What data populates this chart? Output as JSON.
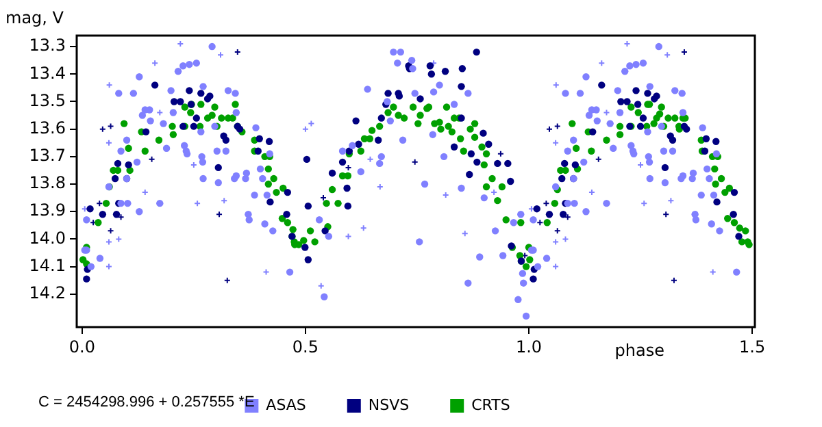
{
  "chart_data": {
    "type": "scatter",
    "xlabel": "phase",
    "ylabel": "mag, V",
    "annotations": [
      "C = 2454298.996 + 0.257555 *E"
    ],
    "xlim": [
      -0.012,
      1.506
    ],
    "ylim": [
      14.32,
      13.26
    ],
    "xticks": [
      {
        "value": 0,
        "label": "0.0"
      },
      0.5,
      {
        "value": 1,
        "label": "1.0"
      },
      1.5
    ],
    "yticks": [
      13.3,
      13.4,
      13.5,
      13.6,
      13.7,
      13.8,
      13.9,
      {
        "value": 14,
        "label": "14.0"
      },
      14.1,
      14.2
    ],
    "grid": false,
    "legend": "bottom",
    "series": [
      {
        "name": "ASAS",
        "color": "#8080ff",
        "marker": "circle",
        "x": [
          0.006,
          0.01,
          0.02,
          0.01,
          0.04,
          0.06,
          0.087,
          0.082,
          0.1,
          0.1,
          0.102,
          0.087,
          0.115,
          0.123,
          0.128,
          0.128,
          0.135,
          0.141,
          0.151,
          0.153,
          0.174,
          0.182,
          0.189,
          0.199,
          0.204,
          0.215,
          0.226,
          0.24,
          0.256,
          0.229,
          0.235,
          0.233,
          0.271,
          0.266,
          0.268,
          0.27,
          0.271,
          0.291,
          0.297,
          0.302,
          0.305,
          0.322,
          0.327,
          0.343,
          0.345,
          0.341,
          0.345,
          0.368,
          0.366,
          0.372,
          0.374,
          0.389,
          0.386,
          0.399,
          0.404,
          0.409,
          0.414,
          0.427,
          0.42,
          0.465,
          0.542,
          0.531,
          0.552,
          0.583,
          0.605,
          0.624,
          0.639,
          0.666,
          0.67,
          0.683,
          0.69,
          0.697,
          0.713,
          0.706,
          0.718,
          0.738,
          0.74,
          0.745,
          0.755,
          0.767,
          0.785,
          0.787,
          0.8,
          0.81,
          0.833,
          0.849,
          0.864,
          0.864,
          0.89,
          0.9,
          0.925,
          0.942,
          0.966,
          0.982,
          0.986,
          0.988,
          0.976,
          0.994,
          1.006,
          1.01,
          1.02,
          1.01,
          1.04,
          1.06,
          1.087,
          1.082,
          1.1,
          1.1,
          1.102,
          1.087,
          1.115,
          1.123,
          1.128,
          1.128,
          1.135,
          1.141,
          1.151,
          1.153,
          1.174,
          1.182,
          1.189,
          1.199,
          1.204,
          1.215,
          1.226,
          1.24,
          1.256,
          1.229,
          1.235,
          1.233,
          1.271,
          1.266,
          1.268,
          1.27,
          1.271,
          1.291,
          1.297,
          1.302,
          1.305,
          1.322,
          1.327,
          1.343,
          1.345,
          1.341,
          1.345,
          1.368,
          1.366,
          1.372,
          1.374,
          1.389,
          1.386,
          1.399,
          1.404,
          1.409,
          1.414,
          1.427,
          1.42,
          1.465
        ],
        "values": [
          14.04,
          14.04,
          14.1,
          13.93,
          14.07,
          13.81,
          13.87,
          13.47,
          13.78,
          13.64,
          13.87,
          13.68,
          13.47,
          13.72,
          13.41,
          13.9,
          13.55,
          13.53,
          13.53,
          13.57,
          13.87,
          13.58,
          13.67,
          13.46,
          13.54,
          13.39,
          13.37,
          13.365,
          13.36,
          13.66,
          13.69,
          13.68,
          13.445,
          13.61,
          13.7,
          13.72,
          13.78,
          13.3,
          13.59,
          13.68,
          13.795,
          13.68,
          13.46,
          13.47,
          13.54,
          13.78,
          13.77,
          13.76,
          13.78,
          13.91,
          13.93,
          13.595,
          13.84,
          13.745,
          13.78,
          13.945,
          13.84,
          13.97,
          13.69,
          14.12,
          14.21,
          13.93,
          13.99,
          13.68,
          13.66,
          13.755,
          13.455,
          13.725,
          13.7,
          13.5,
          13.57,
          13.32,
          13.32,
          13.36,
          13.64,
          13.35,
          13.38,
          13.47,
          14.01,
          13.8,
          13.62,
          13.465,
          13.44,
          13.7,
          13.51,
          13.815,
          13.47,
          14.16,
          14.065,
          13.85,
          13.97,
          14.06,
          13.94,
          13.91,
          14.125,
          14.16,
          14.22,
          14.28,
          14.04,
          14.04,
          14.1,
          13.93,
          14.07,
          13.81,
          13.87,
          13.47,
          13.78,
          13.64,
          13.87,
          13.68,
          13.47,
          13.72,
          13.41,
          13.9,
          13.55,
          13.53,
          13.53,
          13.57,
          13.87,
          13.58,
          13.67,
          13.46,
          13.54,
          13.39,
          13.37,
          13.365,
          13.36,
          13.66,
          13.69,
          13.68,
          13.445,
          13.61,
          13.7,
          13.72,
          13.78,
          13.3,
          13.59,
          13.68,
          13.795,
          13.68,
          13.46,
          13.47,
          13.54,
          13.78,
          13.77,
          13.76,
          13.78,
          13.91,
          13.93,
          13.595,
          13.84,
          13.745,
          13.78,
          13.945,
          13.84,
          13.97,
          13.69,
          14.12
        ]
      },
      {
        "name": "NSVS",
        "color": "#000080",
        "marker": "circle",
        "x": [
          0.01,
          0.012,
          0.018,
          0.046,
          0.077,
          0.082,
          0.08,
          0.074,
          0.1,
          0.104,
          0.143,
          0.163,
          0.206,
          0.22,
          0.24,
          0.244,
          0.256,
          0.25,
          0.226,
          0.266,
          0.281,
          0.286,
          0.317,
          0.322,
          0.305,
          0.348,
          0.353,
          0.397,
          0.419,
          0.394,
          0.421,
          0.46,
          0.458,
          0.47,
          0.503,
          0.506,
          0.499,
          0.506,
          0.544,
          0.56,
          0.583,
          0.593,
          0.595,
          0.598,
          0.619,
          0.613,
          0.663,
          0.67,
          0.68,
          0.685,
          0.708,
          0.71,
          0.731,
          0.733,
          0.757,
          0.779,
          0.782,
          0.813,
          0.851,
          0.849,
          0.883,
          0.833,
          0.849,
          0.871,
          0.884,
          0.867,
          0.898,
          0.91,
          0.93,
          0.953,
          0.959,
          0.961,
          0.983,
          1.01,
          1.012,
          1.018,
          1.046,
          1.077,
          1.082,
          1.08,
          1.074,
          1.1,
          1.104,
          1.143,
          1.163,
          1.206,
          1.22,
          1.24,
          1.244,
          1.256,
          1.25,
          1.226,
          1.266,
          1.281,
          1.286,
          1.317,
          1.322,
          1.305,
          1.348,
          1.353,
          1.397,
          1.419,
          1.394,
          1.421,
          1.46,
          1.458,
          1.47
        ],
        "values": [
          14.145,
          14.11,
          13.89,
          13.91,
          13.91,
          13.87,
          13.725,
          13.78,
          13.78,
          13.73,
          13.61,
          13.44,
          13.5,
          13.5,
          13.46,
          13.51,
          13.56,
          13.59,
          13.59,
          13.47,
          13.49,
          13.48,
          13.625,
          13.64,
          13.74,
          13.59,
          13.6,
          13.635,
          13.645,
          13.68,
          13.865,
          13.83,
          13.91,
          13.99,
          13.71,
          13.88,
          14.03,
          14.075,
          13.97,
          13.76,
          13.72,
          13.815,
          13.88,
          13.68,
          13.655,
          13.57,
          13.64,
          13.56,
          13.51,
          13.47,
          13.47,
          13.48,
          13.37,
          13.38,
          13.49,
          13.37,
          13.4,
          13.39,
          13.38,
          13.445,
          13.32,
          13.665,
          13.56,
          13.69,
          13.72,
          13.765,
          13.615,
          13.655,
          13.725,
          13.725,
          13.79,
          14.025,
          14.08,
          14.145,
          14.11,
          13.89,
          13.91,
          13.91,
          13.87,
          13.725,
          13.78,
          13.78,
          13.73,
          13.61,
          13.44,
          13.5,
          13.5,
          13.46,
          13.51,
          13.56,
          13.59,
          13.59,
          13.47,
          13.49,
          13.48,
          13.625,
          13.64,
          13.74,
          13.59,
          13.6,
          13.635,
          13.645,
          13.68,
          13.865,
          13.83,
          13.91,
          13.99
        ]
      },
      {
        "name": "CRTS",
        "color": "#00a000",
        "marker": "circle",
        "x": [
          0.002,
          0.01,
          0.01,
          0.036,
          0.054,
          0.061,
          0.07,
          0.08,
          0.107,
          0.104,
          0.094,
          0.133,
          0.141,
          0.172,
          0.202,
          0.204,
          0.23,
          0.23,
          0.243,
          0.245,
          0.266,
          0.264,
          0.281,
          0.291,
          0.297,
          0.302,
          0.312,
          0.327,
          0.337,
          0.343,
          0.348,
          0.358,
          0.386,
          0.386,
          0.409,
          0.42,
          0.417,
          0.417,
          0.429,
          0.435,
          0.45,
          0.448,
          0.46,
          0.472,
          0.475,
          0.485,
          0.47,
          0.476,
          0.496,
          0.511,
          0.521,
          0.547,
          0.55,
          0.56,
          0.573,
          0.583,
          0.595,
          0.598,
          0.624,
          0.632,
          0.644,
          0.649,
          0.666,
          0.685,
          0.697,
          0.708,
          0.721,
          0.741,
          0.752,
          0.757,
          0.772,
          0.776,
          0.789,
          0.8,
          0.803,
          0.816,
          0.82,
          0.828,
          0.833,
          0.844,
          0.847,
          0.854,
          0.869,
          0.879,
          0.879,
          0.895,
          0.905,
          0.9,
          0.918,
          0.905,
          0.93,
          0.94,
          0.949,
          0.963,
          0.982,
          0.98,
          0.983,
          0.994,
          1.002,
          1.0,
          1.041,
          1.058,
          1.064,
          1.071,
          1.082,
          1.109,
          1.106,
          1.097,
          1.133,
          1.14,
          1.174,
          1.204,
          1.204,
          1.229,
          1.229,
          1.245,
          1.266,
          1.264,
          1.27,
          1.28,
          1.286,
          1.293,
          1.297,
          1.302,
          1.312,
          1.327,
          1.336,
          1.337,
          1.345,
          1.35,
          1.386,
          1.388,
          1.411,
          1.423,
          1.416,
          1.418,
          1.431,
          1.439,
          1.449,
          1.445,
          1.46,
          1.472,
          1.477,
          1.485,
          1.493,
          1.49
        ],
        "values": [
          14.075,
          14.03,
          14.09,
          13.94,
          13.87,
          13.81,
          13.75,
          13.75,
          13.75,
          13.67,
          13.58,
          13.61,
          13.68,
          13.64,
          13.59,
          13.62,
          13.59,
          13.52,
          13.54,
          13.51,
          13.51,
          13.59,
          13.56,
          13.55,
          13.52,
          13.59,
          13.56,
          13.56,
          13.56,
          13.51,
          13.59,
          13.61,
          13.64,
          13.68,
          13.7,
          13.7,
          13.745,
          13.8,
          13.78,
          13.83,
          13.815,
          13.925,
          13.94,
          13.965,
          14.01,
          14.02,
          13.99,
          14.02,
          14.005,
          13.97,
          14.01,
          13.87,
          13.955,
          13.82,
          13.87,
          13.77,
          13.77,
          13.69,
          13.68,
          13.635,
          13.635,
          13.605,
          13.59,
          13.54,
          13.52,
          13.55,
          13.56,
          13.52,
          13.58,
          13.55,
          13.525,
          13.52,
          13.58,
          13.575,
          13.6,
          13.52,
          13.59,
          13.61,
          13.56,
          13.56,
          13.635,
          13.68,
          13.6,
          13.63,
          13.58,
          13.665,
          13.69,
          13.73,
          13.78,
          13.81,
          13.86,
          13.81,
          13.93,
          14.03,
          13.94,
          14.06,
          14.08,
          14.1,
          14.075,
          14.03,
          13.94,
          13.87,
          13.82,
          13.75,
          13.75,
          13.745,
          13.67,
          13.58,
          13.61,
          13.68,
          13.64,
          13.59,
          13.62,
          13.59,
          13.52,
          13.54,
          13.51,
          13.59,
          13.51,
          13.58,
          13.56,
          13.545,
          13.52,
          13.59,
          13.56,
          13.56,
          13.59,
          13.6,
          13.56,
          13.56,
          13.64,
          13.68,
          13.7,
          13.7,
          13.745,
          13.8,
          13.78,
          13.83,
          13.815,
          13.925,
          13.94,
          13.96,
          14.01,
          13.97,
          14.02,
          14.01
        ]
      },
      {
        "color": "#8080ff",
        "marker": "cross",
        "x": [
          0.006,
          0.061,
          0.06,
          0.06,
          0.082,
          0.06,
          0.163,
          0.22,
          0.141,
          0.31,
          0.258,
          0.318,
          0.412,
          0.174,
          0.25,
          0.5,
          0.513,
          0.535,
          0.596,
          0.63,
          0.667,
          0.645,
          0.787,
          0.814,
          0.857,
          0.922,
          1.006,
          1.061,
          1.06,
          1.06,
          1.082,
          1.06,
          1.163,
          1.22,
          1.141,
          1.31,
          1.258,
          1.318,
          1.412,
          1.174,
          1.25
        ],
        "values": [
          13.89,
          13.44,
          13.65,
          14.01,
          14.0,
          14.1,
          13.36,
          13.29,
          13.83,
          13.33,
          13.87,
          13.86,
          14.12,
          13.54,
          13.73,
          13.6,
          13.58,
          14.17,
          13.99,
          13.96,
          13.81,
          13.71,
          13.36,
          13.84,
          13.98,
          13.83,
          13.89,
          13.44,
          13.65,
          14.01,
          14.0,
          14.1,
          13.36,
          13.29,
          13.83,
          13.33,
          13.87,
          13.86,
          14.12,
          13.54,
          13.73
        ]
      },
      {
        "color": "#000080",
        "marker": "cross",
        "x": [
          0.046,
          0.064,
          0.039,
          0.025,
          0.064,
          0.087,
          0.348,
          0.325,
          0.307,
          0.156,
          0.596,
          0.54,
          0.745,
          0.937,
          0.991,
          1.046,
          1.064,
          1.039,
          1.025,
          1.064,
          1.087,
          1.348,
          1.325,
          1.307,
          1.156
        ],
        "values": [
          13.6,
          13.59,
          13.87,
          13.94,
          13.97,
          13.92,
          13.32,
          14.15,
          13.91,
          13.71,
          13.74,
          13.85,
          13.72,
          13.69,
          14.06,
          13.6,
          13.59,
          13.87,
          13.94,
          13.97,
          13.92,
          13.32,
          14.15,
          13.91,
          13.71
        ]
      }
    ]
  }
}
